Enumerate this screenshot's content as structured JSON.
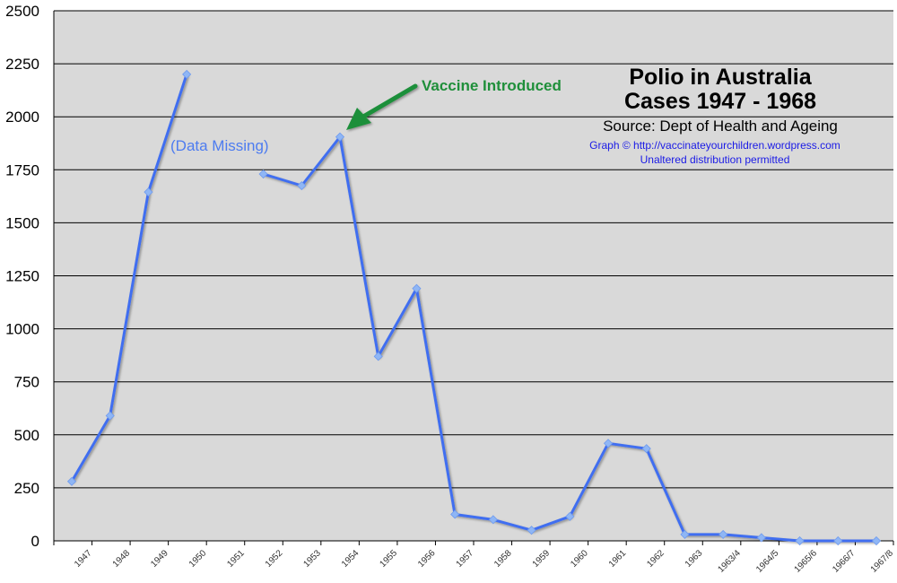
{
  "chart_data": {
    "type": "line",
    "title_line1": "Polio in Australia",
    "title_line2": "Cases 1947 - 1968",
    "source": "Source: Dept of Health and Ageing",
    "credit_line1": "Graph © http://vaccinateyourchildren.wordpress.com",
    "credit_line2": "Unaltered distribution permitted",
    "xlabel": "",
    "ylabel": "",
    "ylim": [
      0,
      2500
    ],
    "yticks": [
      0,
      250,
      500,
      750,
      1000,
      1250,
      1500,
      1750,
      2000,
      2250,
      2500
    ],
    "grid": true,
    "categories": [
      "1947",
      "1948",
      "1949",
      "1950",
      "1951",
      "1952",
      "1953",
      "1954",
      "1955",
      "1956",
      "1957",
      "1958",
      "1959",
      "1960",
      "1961",
      "1962",
      "1963",
      "1963/4",
      "1964/5",
      "1965/6",
      "1966/7",
      "1967/8"
    ],
    "series": [
      {
        "values": [
          280,
          590,
          1645,
          2200,
          null,
          1730,
          1675,
          1905,
          870,
          1190,
          125,
          100,
          50,
          115,
          460,
          435,
          30,
          30,
          15,
          0,
          0,
          0
        ]
      }
    ],
    "annotations": [
      {
        "text": "(Data Missing)",
        "category": "1950"
      },
      {
        "text": "Vaccine Introduced",
        "category": "1954"
      }
    ],
    "colors": {
      "line": "#3f6ef0",
      "marker": "#8fb6f5",
      "plot_background": "#d9d9d9",
      "grid": "#000000",
      "missing": "#4d7cf0",
      "vaccine": "#1f8f3a"
    }
  }
}
